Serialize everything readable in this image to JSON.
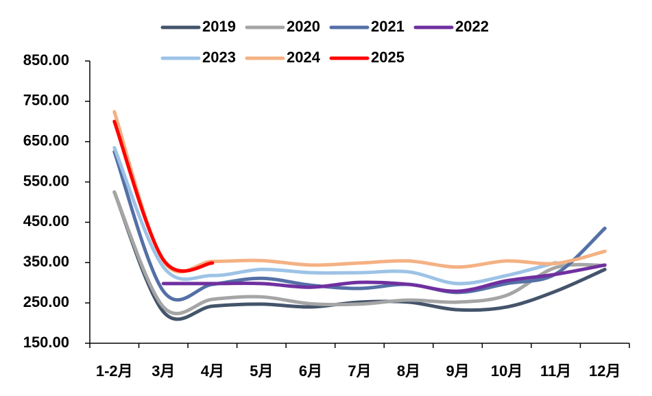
{
  "chart_data": {
    "type": "line",
    "categories": [
      "1-2月",
      "3月",
      "4月",
      "5月",
      "6月",
      "7月",
      "8月",
      "9月",
      "10月",
      "11月",
      "12月"
    ],
    "series": [
      {
        "name": "2019",
        "color": "#44546a",
        "values": [
          525,
          228,
          242,
          247,
          240,
          252,
          252,
          233,
          240,
          279,
          333
        ]
      },
      {
        "name": "2020",
        "color": "#a5a5a5",
        "values": [
          525,
          240,
          259,
          265,
          248,
          247,
          257,
          252,
          269,
          338,
          343
        ]
      },
      {
        "name": "2021",
        "color": "#5470a6",
        "values": [
          625,
          279,
          296,
          311,
          294,
          286,
          296,
          276,
          298,
          322,
          435
        ]
      },
      {
        "name": "2022",
        "color": "#7030a0",
        "values": [
          null,
          298,
          298,
          298,
          289,
          301,
          296,
          279,
          305,
          321,
          344
        ]
      },
      {
        "name": "2023",
        "color": "#9dc3e6",
        "values": [
          635,
          339,
          318,
          333,
          325,
          325,
          327,
          298,
          318,
          350,
          null
        ]
      },
      {
        "name": "2024",
        "color": "#f4b183",
        "values": [
          724,
          355,
          353,
          355,
          344,
          349,
          354,
          339,
          354,
          348,
          378
        ]
      },
      {
        "name": "2025",
        "color": "#ff0000",
        "values": [
          700,
          357,
          349,
          null,
          null,
          null,
          null,
          null,
          null,
          null,
          null
        ]
      }
    ],
    "ylim": [
      150,
      850
    ],
    "yticks": [
      {
        "value": 150,
        "label": "150.00"
      },
      {
        "value": 250,
        "label": "250.00"
      },
      {
        "value": 350,
        "label": "350.00"
      },
      {
        "value": 450,
        "label": "450.00"
      },
      {
        "value": 550,
        "label": "550.00"
      },
      {
        "value": 650,
        "label": "650.00"
      },
      {
        "value": 750,
        "label": "750.00"
      },
      {
        "value": 850,
        "label": "850.00"
      }
    ],
    "grid": false
  }
}
